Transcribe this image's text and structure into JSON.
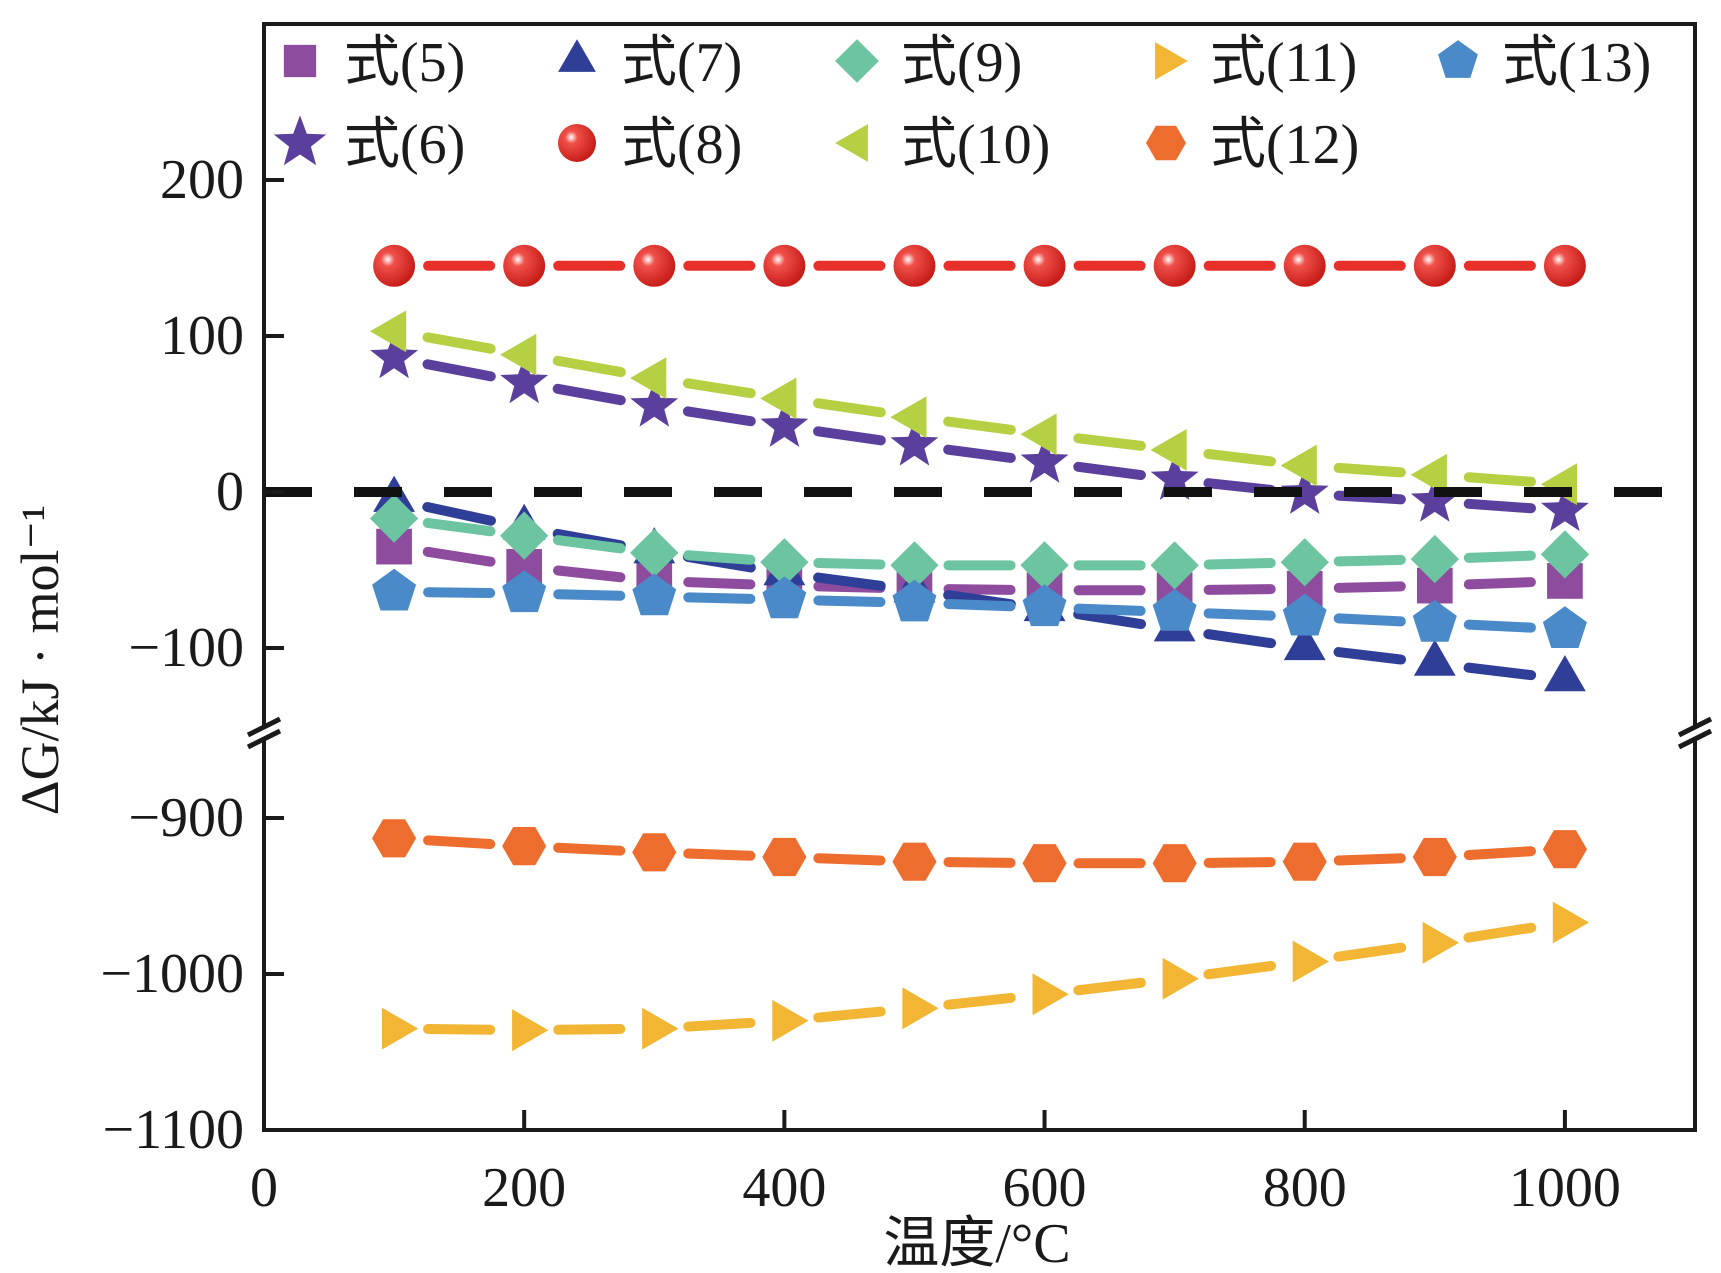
{
  "chart_data": {
    "type": "line",
    "title": "",
    "xlabel": "温度/°C",
    "ylabel": "ΔG/kJ · mol⁻¹",
    "xlim": [
      0,
      1100
    ],
    "ylim_upper": [
      -150,
      300
    ],
    "ylim_lower": [
      -1100,
      -850
    ],
    "axis_break": true,
    "reference_line": {
      "y": 0,
      "style": "dashed",
      "color": "#111111"
    },
    "xticks": [
      0,
      200,
      400,
      600,
      800,
      1000
    ],
    "xtick_labels": [
      "0",
      "200",
      "400",
      "600",
      "800",
      "1000"
    ],
    "yticks_upper": [
      200,
      100,
      0,
      -100
    ],
    "ytick_labels_upper": [
      "200",
      "100",
      "0",
      "−100"
    ],
    "yticks_lower": [
      -900,
      -1000,
      -1100
    ],
    "ytick_labels_lower": [
      "−900",
      "−1000",
      "−1100"
    ],
    "legend_placement": "top (2 rows inside plot)",
    "x": [
      100,
      200,
      300,
      400,
      500,
      600,
      700,
      800,
      900,
      1000
    ],
    "series": [
      {
        "name": "式(5)",
        "marker": "square",
        "color": "#8e4c9e",
        "values": [
          -35,
          -48,
          -57,
          -60,
          -62,
          -63,
          -63,
          -62,
          -60,
          -57
        ]
      },
      {
        "name": "式(6)",
        "marker": "star",
        "color": "#5b3f9c",
        "values": [
          86,
          70,
          55,
          42,
          30,
          19,
          8,
          -1,
          -6,
          -12
        ]
      },
      {
        "name": "式(7)",
        "marker": "triangle-up",
        "color": "#2f3f97",
        "values": [
          -5,
          -23,
          -38,
          -52,
          -63,
          -75,
          -88,
          -100,
          -110,
          -120
        ]
      },
      {
        "name": "式(8)",
        "marker": "sphere",
        "color": "#e8302a",
        "values": [
          145,
          145,
          145,
          145,
          145,
          145,
          145,
          145,
          145,
          145
        ]
      },
      {
        "name": "式(9)",
        "marker": "diamond",
        "color": "#6cc4a0",
        "values": [
          -17,
          -28,
          -39,
          -45,
          -47,
          -47,
          -47,
          -45,
          -43,
          -40
        ]
      },
      {
        "name": "式(10)",
        "marker": "triangle-left",
        "color": "#b5d043",
        "values": [
          103,
          88,
          73,
          60,
          48,
          37,
          27,
          17,
          11,
          5
        ]
      },
      {
        "name": "式(11)",
        "marker": "triangle-right",
        "color": "#f2b534",
        "values": [
          -1035,
          -1036,
          -1035,
          -1030,
          -1022,
          -1013,
          -1003,
          -992,
          -980,
          -967
        ]
      },
      {
        "name": "式(12)",
        "marker": "hexagon",
        "color": "#ec6d2e",
        "values": [
          -913,
          -918,
          -922,
          -925,
          -928,
          -929,
          -929,
          -928,
          -925,
          -920
        ]
      },
      {
        "name": "式(13)",
        "marker": "pentagon",
        "color": "#4a8ac8",
        "values": [
          -64,
          -65,
          -67,
          -69,
          -71,
          -74,
          -77,
          -80,
          -84,
          -88
        ]
      }
    ]
  }
}
